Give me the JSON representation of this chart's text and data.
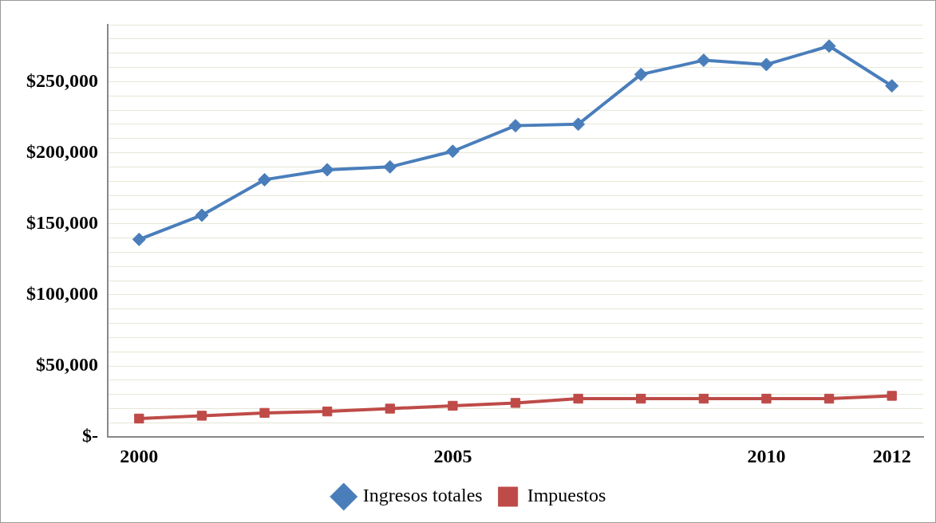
{
  "chart_data": {
    "type": "line",
    "categories": [
      "2000",
      null,
      null,
      null,
      null,
      "2005",
      null,
      null,
      null,
      null,
      "2010",
      null,
      "2012"
    ],
    "series": [
      {
        "name": "Ingresos totales",
        "color": "#4a7ebb",
        "marker": "diamond",
        "values": [
          139000,
          156000,
          181000,
          188000,
          190000,
          201000,
          219000,
          220000,
          255000,
          265000,
          262000,
          275000,
          247000
        ]
      },
      {
        "name": "Impuestos",
        "color": "#be4b48",
        "marker": "square",
        "values": [
          13000,
          15000,
          17000,
          18000,
          20000,
          22000,
          24000,
          27000,
          27000,
          27000,
          27000,
          27000,
          29000
        ]
      }
    ],
    "ylim": [
      0,
      290000
    ],
    "yticks": [
      {
        "value": 0,
        "label": "$-"
      },
      {
        "value": 10000,
        "label": null
      },
      {
        "value": 20000,
        "label": null
      },
      {
        "value": 30000,
        "label": null
      },
      {
        "value": 40000,
        "label": null
      },
      {
        "value": 50000,
        "label": "$50,000"
      },
      {
        "value": 60000,
        "label": null
      },
      {
        "value": 70000,
        "label": null
      },
      {
        "value": 80000,
        "label": null
      },
      {
        "value": 90000,
        "label": null
      },
      {
        "value": 100000,
        "label": "$100,000"
      },
      {
        "value": 110000,
        "label": null
      },
      {
        "value": 120000,
        "label": null
      },
      {
        "value": 130000,
        "label": null
      },
      {
        "value": 140000,
        "label": null
      },
      {
        "value": 150000,
        "label": "$150,000"
      },
      {
        "value": 160000,
        "label": null
      },
      {
        "value": 170000,
        "label": null
      },
      {
        "value": 180000,
        "label": null
      },
      {
        "value": 190000,
        "label": null
      },
      {
        "value": 200000,
        "label": "$200,000"
      },
      {
        "value": 210000,
        "label": null
      },
      {
        "value": 220000,
        "label": null
      },
      {
        "value": 230000,
        "label": null
      },
      {
        "value": 240000,
        "label": null
      },
      {
        "value": 250000,
        "label": "$250,000"
      },
      {
        "value": 260000,
        "label": null
      },
      {
        "value": 270000,
        "label": null
      },
      {
        "value": 280000,
        "label": null
      },
      {
        "value": 290000,
        "label": null
      }
    ],
    "grid": "y",
    "legend": "bottom",
    "line_style": "solid"
  }
}
